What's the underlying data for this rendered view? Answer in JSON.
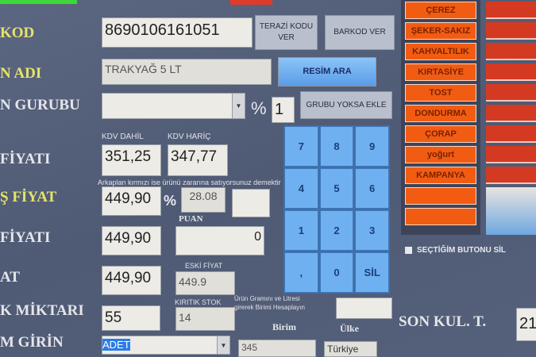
{
  "labels": {
    "barkod": "KOD",
    "urun_adi": "N ADI",
    "urun_gurubu": "N GURUBU",
    "alis_fiyati": "FİYATI",
    "satis_fiyat": "Ş FİYAT",
    "fiyat2": "FİYATI",
    "fiyat3": "AT",
    "stok_miktari": "K MİKTARI",
    "birim_girin": "M GİRİN",
    "kdv_dahil": "KDV DAHİL",
    "kdv_haric": "KDV HARİÇ",
    "note_red": "Arkaplan kırmızı ise ürünü zararına satıyorsunuz demektir",
    "puan": "PUAN",
    "eski_fiyat": "ESKİ FİYAT",
    "kritik_stok": "KIRITIK STOK",
    "gram_note_1": "Ürün Gramını ve Litresi",
    "gram_note_2": "girerek Birimi Hesaplayın",
    "birim": "Birim",
    "ulke": "Ülke",
    "percent": "%",
    "percent2": "%",
    "son_kul": "SON KUL. T."
  },
  "fields": {
    "barcode": "8690106161051",
    "product_name": "TRAKYAĞ 5 LT",
    "group": "",
    "kdv_rate": "1",
    "alis_kdv_dahil": "351,25",
    "alis_kdv_haric": "347,77",
    "satis_fiyat": "449,90",
    "kar_orani": "28.08",
    "extra": "",
    "fiyat2": "449,90",
    "puan": "0",
    "fiyat3": "449,90",
    "eski_fiyat": "449.9",
    "stok": "55",
    "kritik_stok": "14",
    "gram": "",
    "birim_select": "ADET",
    "birim": "345",
    "ulke": "Türkiye",
    "son_kul": "21"
  },
  "buttons": {
    "terazi_1": "TERAZİ KODU",
    "terazi_2": "VER",
    "barkod_ver": "BARKOD VER",
    "resim_ara": "RESİM ARA",
    "grubu_ekle": "GRUBU YOKSA EKLE"
  },
  "keypad": [
    "7",
    "8",
    "9",
    "4",
    "5",
    "6",
    "1",
    "2",
    "3",
    ",",
    "0",
    "SİL"
  ],
  "categories": [
    "ÇEREZ",
    "ŞEKER-SAKIZ",
    "KAHVALTILIK",
    "KIRTASİYE",
    "TOST",
    "DONDURMA",
    "ÇORAP",
    "yoğurt",
    "KAMPANYA",
    "",
    ""
  ],
  "checkbox": {
    "label": "SEÇTİĞİM BUTONU SİL",
    "checked": false
  },
  "colors": {
    "accent_blue": "#6fb0f0",
    "category_orange": "#f25c12",
    "label_yellow": "#e6e36a",
    "background": "#55607a"
  }
}
